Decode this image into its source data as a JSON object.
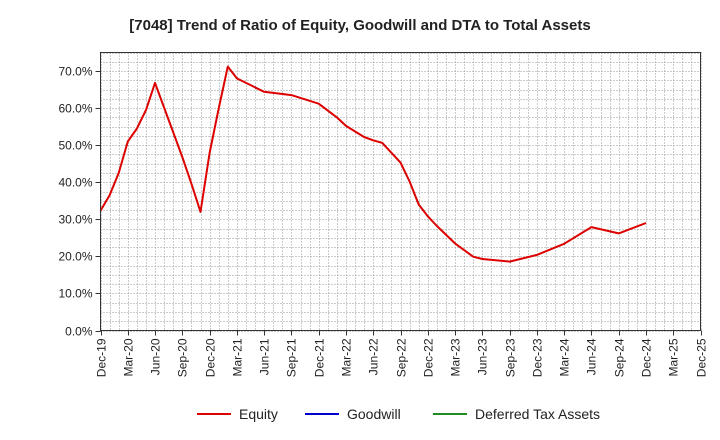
{
  "chart_data": {
    "type": "line",
    "title": "[7048]  Trend of Ratio of Equity, Goodwill and DTA to Total Assets",
    "xlabel": "",
    "ylabel": "",
    "ylim": [
      0,
      75
    ],
    "y_ticks": [
      0,
      10,
      20,
      30,
      40,
      50,
      60,
      70
    ],
    "y_tick_labels": [
      "0.0%",
      "10.0%",
      "20.0%",
      "30.0%",
      "40.0%",
      "50.0%",
      "60.0%",
      "70.0%"
    ],
    "x_range_months": [
      0,
      66
    ],
    "x_ticks": [
      0,
      3,
      6,
      9,
      12,
      15,
      18,
      21,
      24,
      27,
      30,
      33,
      36,
      39,
      42,
      45,
      48,
      51,
      54,
      57,
      60,
      63,
      66
    ],
    "x_tick_labels": [
      "Dec-19",
      "Mar-20",
      "Jun-20",
      "Sep-20",
      "Dec-20",
      "Mar-21",
      "Jun-21",
      "Sep-21",
      "Dec-21",
      "Mar-22",
      "Jun-22",
      "Sep-22",
      "Dec-22",
      "Mar-23",
      "Jun-23",
      "Sep-23",
      "Dec-23",
      "Mar-24",
      "Jun-24",
      "Sep-24",
      "Dec-24",
      "Mar-25",
      "Dec-25"
    ],
    "grid": true,
    "legend_position": "bottom",
    "series": [
      {
        "name": "Equity",
        "color": "#dd0000",
        "x": [
          0,
          1,
          2,
          3,
          4,
          5,
          6,
          9,
          10,
          11,
          12,
          13,
          14,
          15,
          18,
          21,
          24,
          26,
          27,
          29,
          30,
          31,
          33,
          34,
          35,
          36,
          37,
          39,
          41,
          42,
          45,
          48,
          51,
          54,
          57,
          60
        ],
        "values": [
          32.3,
          36.5,
          42.5,
          51.0,
          54.5,
          59.5,
          66.8,
          46.8,
          39.6,
          32.0,
          47.9,
          59.9,
          71.2,
          68.0,
          64.4,
          63.5,
          61.2,
          57.5,
          55.2,
          52.2,
          51.3,
          50.6,
          45.3,
          40.2,
          34.0,
          30.8,
          28.2,
          23.5,
          19.9,
          19.3,
          18.6,
          20.4,
          23.4,
          27.9,
          26.2,
          29.0
        ]
      },
      {
        "name": "Goodwill",
        "color": "#0000cc",
        "x": [],
        "values": []
      },
      {
        "name": "Deferred Tax Assets",
        "color": "#228b22",
        "x": [],
        "values": []
      }
    ]
  }
}
